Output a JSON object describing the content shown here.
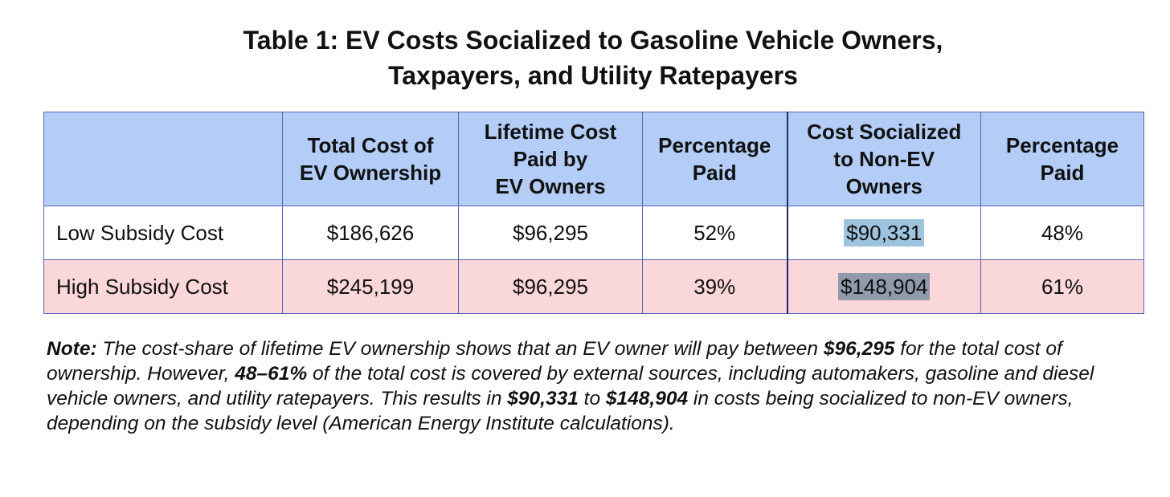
{
  "title": {
    "line1": "Table 1: EV Costs Socialized to Gasoline Vehicle Owners,",
    "line2": "Taxpayers, and Utility Ratepayers"
  },
  "table": {
    "headers": [
      {
        "line1": "",
        "line2": "",
        "line3": ""
      },
      {
        "line1": "Total Cost of",
        "line2": "EV Ownership",
        "line3": ""
      },
      {
        "line1": "Lifetime Cost",
        "line2": "Paid by",
        "line3": "EV Owners"
      },
      {
        "line1": "Percentage",
        "line2": "Paid",
        "line3": ""
      },
      {
        "line1": "Cost Socialized",
        "line2": "to Non-EV",
        "line3": "Owners"
      },
      {
        "line1": "Percentage",
        "line2": "Paid",
        "line3": ""
      }
    ],
    "rows": [
      {
        "label": "Low Subsidy Cost",
        "total_cost": "$186,626",
        "lifetime_paid": "$96,295",
        "percent_paid": "52%",
        "cost_socialized": "$90,331",
        "percent_socialized": "48%"
      },
      {
        "label": "High Subsidy Cost",
        "total_cost": "$245,199",
        "lifetime_paid": "$96,295",
        "percent_paid": "39%",
        "cost_socialized": "$148,904",
        "percent_socialized": "61%"
      }
    ]
  },
  "note": {
    "label": "Note:",
    "part1": " The cost-share of lifetime EV ownership shows that an EV owner will pay between ",
    "bold1": "$96,295",
    "part2": " for the total cost of ownership. However, ",
    "bold2": "48–61%",
    "part3": " of the total cost is covered by external sources, including automakers, gasoline and diesel vehicle owners, and utility ratepayers. This results in ",
    "bold3": "$90,331",
    "part4": " to ",
    "bold4": "$148,904",
    "part5": " in costs being socialized to non-EV owners, depending on the subsidy level (American Energy Institute calculations)."
  },
  "colors": {
    "header_bg": "#b3cdf7",
    "high_row_bg": "#fad7d9",
    "border": "#5a63b5",
    "highlight_blue": "#9dc3de",
    "highlight_gray": "#8f9aaa"
  }
}
